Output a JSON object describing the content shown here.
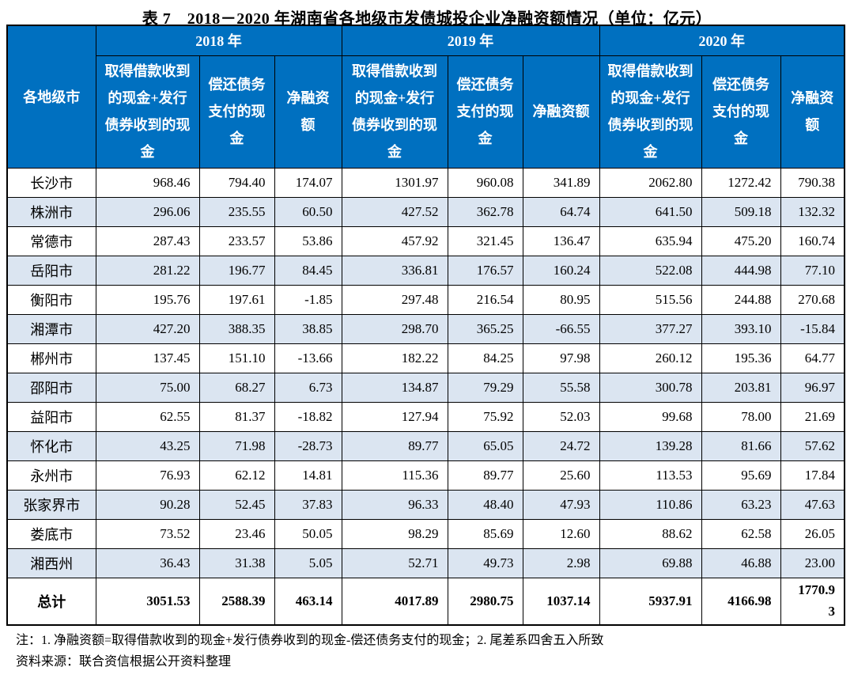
{
  "title": "表 7　2018－2020 年湖南省各地级市发债城投企业净融资额情况（单位：亿元）",
  "table": {
    "city_column_header": "各地级市",
    "year_groups": [
      {
        "year": "2018 年",
        "cols": [
          "取得借款收到的现金+发行债券收到的现金",
          "偿还债务支付的现金",
          "净融资额"
        ]
      },
      {
        "year": "2019 年",
        "cols": [
          "取得借款收到的现金+发行债券收到的现金",
          "偿还债务支付的现金",
          "净融资额"
        ]
      },
      {
        "year": "2020 年",
        "cols": [
          "取得借款收到的现金+发行债券收到的现金",
          "偿还债务支付的现金",
          "净融资额"
        ]
      }
    ],
    "rows": [
      {
        "city": "长沙市",
        "values": [
          "968.46",
          "794.40",
          "174.07",
          "1301.97",
          "960.08",
          "341.89",
          "2062.80",
          "1272.42",
          "790.38"
        ]
      },
      {
        "city": "株洲市",
        "values": [
          "296.06",
          "235.55",
          "60.50",
          "427.52",
          "362.78",
          "64.74",
          "641.50",
          "509.18",
          "132.32"
        ]
      },
      {
        "city": "常德市",
        "values": [
          "287.43",
          "233.57",
          "53.86",
          "457.92",
          "321.45",
          "136.47",
          "635.94",
          "475.20",
          "160.74"
        ]
      },
      {
        "city": "岳阳市",
        "values": [
          "281.22",
          "196.77",
          "84.45",
          "336.81",
          "176.57",
          "160.24",
          "522.08",
          "444.98",
          "77.10"
        ]
      },
      {
        "city": "衡阳市",
        "values": [
          "195.76",
          "197.61",
          "-1.85",
          "297.48",
          "216.54",
          "80.95",
          "515.56",
          "244.88",
          "270.68"
        ]
      },
      {
        "city": "湘潭市",
        "values": [
          "427.20",
          "388.35",
          "38.85",
          "298.70",
          "365.25",
          "-66.55",
          "377.27",
          "393.10",
          "-15.84"
        ]
      },
      {
        "city": "郴州市",
        "values": [
          "137.45",
          "151.10",
          "-13.66",
          "182.22",
          "84.25",
          "97.98",
          "260.12",
          "195.36",
          "64.77"
        ]
      },
      {
        "city": "邵阳市",
        "values": [
          "75.00",
          "68.27",
          "6.73",
          "134.87",
          "79.29",
          "55.58",
          "300.78",
          "203.81",
          "96.97"
        ]
      },
      {
        "city": "益阳市",
        "values": [
          "62.55",
          "81.37",
          "-18.82",
          "127.94",
          "75.92",
          "52.03",
          "99.68",
          "78.00",
          "21.69"
        ]
      },
      {
        "city": "怀化市",
        "values": [
          "43.25",
          "71.98",
          "-28.73",
          "89.77",
          "65.05",
          "24.72",
          "139.28",
          "81.66",
          "57.62"
        ]
      },
      {
        "city": "永州市",
        "values": [
          "76.93",
          "62.12",
          "14.81",
          "115.36",
          "89.77",
          "25.60",
          "113.53",
          "95.69",
          "17.84"
        ]
      },
      {
        "city": "张家界市",
        "values": [
          "90.28",
          "52.45",
          "37.83",
          "96.33",
          "48.40",
          "47.93",
          "110.86",
          "63.23",
          "47.63"
        ]
      },
      {
        "city": "娄底市",
        "values": [
          "73.52",
          "23.46",
          "50.05",
          "98.29",
          "85.69",
          "12.60",
          "88.62",
          "62.58",
          "26.05"
        ]
      },
      {
        "city": "湘西州",
        "values": [
          "36.43",
          "31.38",
          "5.05",
          "52.71",
          "49.73",
          "2.98",
          "69.88",
          "46.88",
          "23.00"
        ]
      }
    ],
    "total_row": {
      "city": "总计",
      "values": [
        "3051.53",
        "2588.39",
        "463.14",
        "4017.89",
        "2980.75",
        "1037.14",
        "5937.91",
        "4166.98",
        "1770.93"
      ]
    }
  },
  "notes": {
    "note": "注：1. 净融资额=取得借款收到的现金+发行债券收到的现金-偿还债务支付的现金；2. 尾差系四舍五入所致",
    "source": "资料来源：联合资信根据公开资料整理"
  },
  "colors": {
    "header_bg": "#0070C0",
    "header_text": "#FFFFFF",
    "row_alt_bg": "#DBE5F1",
    "border": "#000000"
  }
}
